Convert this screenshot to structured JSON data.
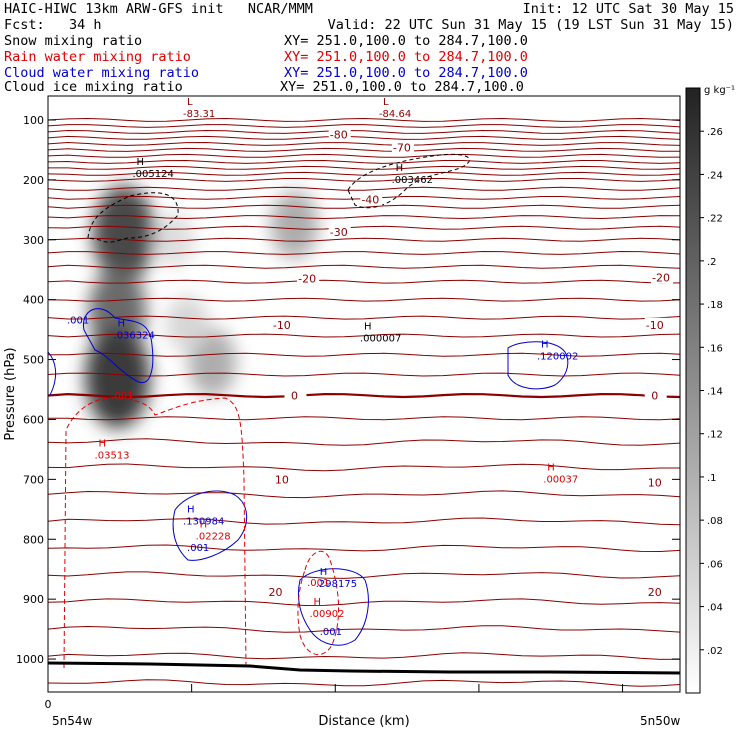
{
  "header": {
    "line1_left": "HAIC-HIWC 13km ARW-GFS init   NCAR/MMM",
    "line1_right": "Init: 12 UTC Sat 30 May 15",
    "line2_left": "Fcst:   34 h",
    "line2_right": "Valid: 22 UTC Sun 31 May 15 (19 LST Sun 31 May 15)",
    "fields": [
      {
        "name": "Snow mixing ratio",
        "xy": "XY= 251.0,100.0 to 284.7,100.0",
        "color": "#000000"
      },
      {
        "name": "Rain water mixing ratio",
        "xy": "XY= 251.0,100.0 to 284.7,100.0",
        "color": "#e00000"
      },
      {
        "name": "Cloud water mixing ratio",
        "xy": "XY= 251.0,100.0 to 284.7,100.0",
        "color": "#0000cc"
      },
      {
        "name": "Cloud ice mixing ratio",
        "xy": "XY= 251.0,100.0 to 284.7,100.0",
        "color": "#000000"
      }
    ]
  },
  "chart_data": {
    "type": "heatmap",
    "title": "",
    "xlabel": "Distance (km)",
    "ylabel": "Pressure (hPa)",
    "x_ticks": [
      "0"
    ],
    "x_endpoints": [
      "5n54w",
      "5n50w"
    ],
    "y_ticks": [
      100,
      200,
      300,
      400,
      500,
      600,
      700,
      800,
      900,
      1000
    ],
    "ylim": [
      1055,
      60
    ],
    "colorbar": {
      "unit": "g kg⁻¹",
      "ticks": [
        ".02",
        ".04",
        ".06",
        ".08",
        ".1",
        ".12",
        ".14",
        ".16",
        ".18",
        ".2",
        ".22",
        ".24",
        ".26"
      ],
      "range": [
        0,
        0.28
      ]
    },
    "isotherm_labels": [
      {
        "text": "-80",
        "x": 0.46,
        "p": 124
      },
      {
        "text": "-70",
        "x": 0.56,
        "p": 146
      },
      {
        "text": "-40",
        "x": 0.51,
        "p": 233
      },
      {
        "text": "-30",
        "x": 0.46,
        "p": 287
      },
      {
        "text": "-20",
        "x": 0.41,
        "p": 365
      },
      {
        "text": "-20",
        "x": 0.97,
        "p": 363
      },
      {
        "text": "-10",
        "x": 0.37,
        "p": 442
      },
      {
        "text": "-10",
        "x": 0.96,
        "p": 442
      },
      {
        "text": "0",
        "x": 0.39,
        "p": 560
      },
      {
        "text": "0",
        "x": 0.96,
        "p": 560
      },
      {
        "text": "10",
        "x": 0.37,
        "p": 700
      },
      {
        "text": "10",
        "x": 0.96,
        "p": 705
      },
      {
        "text": "20",
        "x": 0.36,
        "p": 888
      },
      {
        "text": "20",
        "x": 0.96,
        "p": 888
      }
    ],
    "markers": [
      {
        "mark": "L",
        "value": "-83.31",
        "color": "#8b0000",
        "x": 0.22,
        "p": 95
      },
      {
        "mark": "L",
        "value": "-84.64",
        "color": "#8b0000",
        "x": 0.53,
        "p": 95
      },
      {
        "mark": "H",
        "value": ".005124",
        "color": "#000000",
        "x": 0.14,
        "p": 195
      },
      {
        "mark": "H",
        "value": ".003462",
        "color": "#000000",
        "x": 0.55,
        "p": 205
      },
      {
        "mark": "H",
        "value": ".000007",
        "color": "#000000",
        "x": 0.5,
        "p": 470
      },
      {
        "mark": "H",
        "value": ".036324",
        "color": "#0000cc",
        "x": 0.11,
        "p": 465
      },
      {
        "mark": "H",
        "value": ".120002",
        "color": "#0000cc",
        "x": 0.78,
        "p": 500
      },
      {
        "mark": "H",
        "value": ".130984",
        "color": "#0000cc",
        "x": 0.22,
        "p": 775
      },
      {
        "mark": "H",
        "value": ".298175",
        "color": "#0000cc",
        "x": 0.43,
        "p": 880
      },
      {
        "mark": "H",
        "value": ".03513",
        "color": "#e00000",
        "x": 0.08,
        "p": 665
      },
      {
        "mark": "H",
        "value": ".02228",
        "color": "#e00000",
        "x": 0.24,
        "p": 800
      },
      {
        "mark": "H",
        "value": ".00037",
        "color": "#e00000",
        "x": 0.79,
        "p": 705
      },
      {
        "mark": "H",
        "value": ".00902",
        "color": "#e00000",
        "x": 0.42,
        "p": 930
      }
    ],
    "contour_labels": [
      {
        "text": ".001",
        "color": "#0000cc",
        "x": 0.03,
        "p": 440
      },
      {
        "text": ".001",
        "color": "#0000cc",
        "x": 0.22,
        "p": 820
      },
      {
        "text": ".001",
        "color": "#0000cc",
        "x": 0.43,
        "p": 960
      },
      {
        "text": ".001",
        "color": "#e00000",
        "x": 0.41,
        "p": 878
      },
      {
        "text": ".001",
        "color": "#e00000",
        "x": 0.1,
        "p": 565
      }
    ],
    "snow_blobs": [
      {
        "x": 0.12,
        "p": 290,
        "intensity": 0.22
      },
      {
        "x": 0.11,
        "p": 420,
        "intensity": 0.18
      },
      {
        "x": 0.11,
        "p": 530,
        "intensity": 0.24
      },
      {
        "x": 0.26,
        "p": 505,
        "intensity": 0.1
      },
      {
        "x": 0.39,
        "p": 275,
        "intensity": 0.1
      },
      {
        "x": 0.2,
        "p": 300,
        "intensity": 0.04
      },
      {
        "x": 0.22,
        "p": 440,
        "intensity": 0.05
      }
    ]
  }
}
